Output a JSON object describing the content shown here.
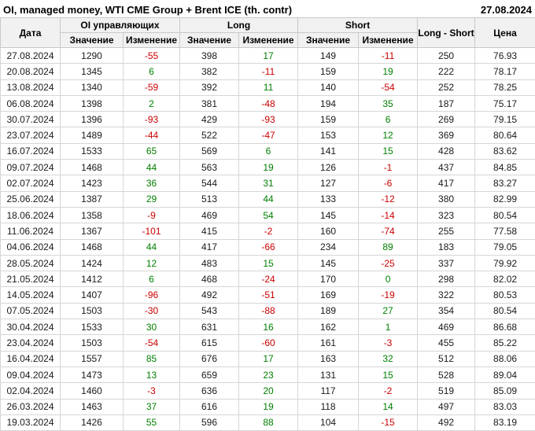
{
  "title": "OI, managed money, WTI CME Group + Brent ICE (th. contr)",
  "report_date": "27.08.2024",
  "colors": {
    "positive": "#008000",
    "negative": "#cc0000"
  },
  "table": {
    "col_groups": {
      "date": "Дата",
      "oi": "OI управляющих",
      "long": "Long",
      "short": "Short",
      "long_short": "Long - Short",
      "price": "Цена"
    },
    "sub_headers": {
      "value": "Значение",
      "change": "Изменение"
    },
    "rows": [
      {
        "date": "27.08.2024",
        "oi": "1290",
        "oi_chg": "-55",
        "long": "398",
        "long_chg": "17",
        "short": "149",
        "short_chg": "-11",
        "long_short": "250",
        "price": "76.93",
        "sep": false
      },
      {
        "date": "20.08.2024",
        "oi": "1345",
        "oi_chg": "6",
        "long": "382",
        "long_chg": "-11",
        "short": "159",
        "short_chg": "19",
        "long_short": "222",
        "price": "78.17",
        "sep": false
      },
      {
        "date": "13.08.2024",
        "oi": "1340",
        "oi_chg": "-59",
        "long": "392",
        "long_chg": "11",
        "short": "140",
        "short_chg": "-54",
        "long_short": "252",
        "price": "78.25",
        "sep": false
      },
      {
        "date": "06.08.2024",
        "oi": "1398",
        "oi_chg": "2",
        "long": "381",
        "long_chg": "-48",
        "short": "194",
        "short_chg": "35",
        "long_short": "187",
        "price": "75.17",
        "sep": false
      },
      {
        "date": "30.07.2024",
        "oi": "1396",
        "oi_chg": "-93",
        "long": "429",
        "long_chg": "-93",
        "short": "159",
        "short_chg": "6",
        "long_short": "269",
        "price": "79.15",
        "sep": true
      },
      {
        "date": "23.07.2024",
        "oi": "1489",
        "oi_chg": "-44",
        "long": "522",
        "long_chg": "-47",
        "short": "153",
        "short_chg": "12",
        "long_short": "369",
        "price": "80.64",
        "sep": false
      },
      {
        "date": "16.07.2024",
        "oi": "1533",
        "oi_chg": "65",
        "long": "569",
        "long_chg": "6",
        "short": "141",
        "short_chg": "15",
        "long_short": "428",
        "price": "83.62",
        "sep": false
      },
      {
        "date": "09.07.2024",
        "oi": "1468",
        "oi_chg": "44",
        "long": "563",
        "long_chg": "19",
        "short": "126",
        "short_chg": "-1",
        "long_short": "437",
        "price": "84.85",
        "sep": false
      },
      {
        "date": "02.07.2024",
        "oi": "1423",
        "oi_chg": "36",
        "long": "544",
        "long_chg": "31",
        "short": "127",
        "short_chg": "-6",
        "long_short": "417",
        "price": "83.27",
        "sep": false
      },
      {
        "date": "25.06.2024",
        "oi": "1387",
        "oi_chg": "29",
        "long": "513",
        "long_chg": "44",
        "short": "133",
        "short_chg": "-12",
        "long_short": "380",
        "price": "82.99",
        "sep": false
      },
      {
        "date": "18.06.2024",
        "oi": "1358",
        "oi_chg": "-9",
        "long": "469",
        "long_chg": "54",
        "short": "145",
        "short_chg": "-14",
        "long_short": "323",
        "price": "80.54",
        "sep": false
      },
      {
        "date": "11.06.2024",
        "oi": "1367",
        "oi_chg": "-101",
        "long": "415",
        "long_chg": "-2",
        "short": "160",
        "short_chg": "-74",
        "long_short": "255",
        "price": "77.58",
        "sep": true
      },
      {
        "date": "04.06.2024",
        "oi": "1468",
        "oi_chg": "44",
        "long": "417",
        "long_chg": "-66",
        "short": "234",
        "short_chg": "89",
        "long_short": "183",
        "price": "79.05",
        "sep": false
      },
      {
        "date": "28.05.2024",
        "oi": "1424",
        "oi_chg": "12",
        "long": "483",
        "long_chg": "15",
        "short": "145",
        "short_chg": "-25",
        "long_short": "337",
        "price": "79.92",
        "sep": false
      },
      {
        "date": "21.05.2024",
        "oi": "1412",
        "oi_chg": "6",
        "long": "468",
        "long_chg": "-24",
        "short": "170",
        "short_chg": "0",
        "long_short": "298",
        "price": "82.02",
        "sep": false
      },
      {
        "date": "14.05.2024",
        "oi": "1407",
        "oi_chg": "-96",
        "long": "492",
        "long_chg": "-51",
        "short": "169",
        "short_chg": "-19",
        "long_short": "322",
        "price": "80.53",
        "sep": false
      },
      {
        "date": "07.05.2024",
        "oi": "1503",
        "oi_chg": "-30",
        "long": "543",
        "long_chg": "-88",
        "short": "189",
        "short_chg": "27",
        "long_short": "354",
        "price": "80.54",
        "sep": false
      },
      {
        "date": "30.04.2024",
        "oi": "1533",
        "oi_chg": "30",
        "long": "631",
        "long_chg": "16",
        "short": "162",
        "short_chg": "1",
        "long_short": "469",
        "price": "86.68",
        "sep": true
      },
      {
        "date": "23.04.2024",
        "oi": "1503",
        "oi_chg": "-54",
        "long": "615",
        "long_chg": "-60",
        "short": "161",
        "short_chg": "-3",
        "long_short": "455",
        "price": "85.22",
        "sep": false
      },
      {
        "date": "16.04.2024",
        "oi": "1557",
        "oi_chg": "85",
        "long": "676",
        "long_chg": "17",
        "short": "163",
        "short_chg": "32",
        "long_short": "512",
        "price": "88.06",
        "sep": false
      },
      {
        "date": "09.04.2024",
        "oi": "1473",
        "oi_chg": "13",
        "long": "659",
        "long_chg": "23",
        "short": "131",
        "short_chg": "15",
        "long_short": "528",
        "price": "89.04",
        "sep": false
      },
      {
        "date": "02.04.2024",
        "oi": "1460",
        "oi_chg": "-3",
        "long": "636",
        "long_chg": "20",
        "short": "117",
        "short_chg": "-2",
        "long_short": "519",
        "price": "85.09",
        "sep": false
      },
      {
        "date": "26.03.2024",
        "oi": "1463",
        "oi_chg": "37",
        "long": "616",
        "long_chg": "19",
        "short": "118",
        "short_chg": "14",
        "long_short": "497",
        "price": "83.03",
        "sep": true
      },
      {
        "date": "19.03.2024",
        "oi": "1426",
        "oi_chg": "55",
        "long": "596",
        "long_chg": "88",
        "short": "104",
        "short_chg": "-15",
        "long_short": "492",
        "price": "83.19",
        "sep": false
      }
    ]
  }
}
